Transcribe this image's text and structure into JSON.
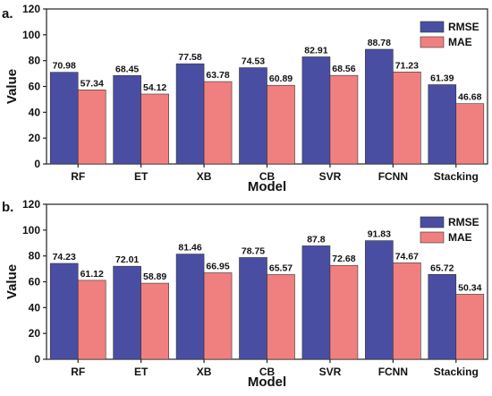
{
  "colors": {
    "rmse": "#4a4ea3",
    "mae": "#f08080",
    "axis": "#222222"
  },
  "chart_data": [
    {
      "type": "bar",
      "panel_label": "a.",
      "xlabel": "Model",
      "ylabel": "Value",
      "ylim": [
        0,
        120
      ],
      "yticks": [
        "0",
        "20",
        "40",
        "60",
        "80",
        "100",
        "120"
      ],
      "legend_position": "top-right",
      "categories": [
        "RF",
        "ET",
        "XB",
        "CB",
        "SVR",
        "FCNN",
        "Stacking"
      ],
      "series": [
        {
          "name": "RMSE",
          "values": [
            70.98,
            68.45,
            77.58,
            74.53,
            82.91,
            88.78,
            61.39
          ],
          "labels": [
            "70.98",
            "68.45",
            "77.58",
            "74.53",
            "82.91",
            "88.78",
            "61.39"
          ]
        },
        {
          "name": "MAE",
          "values": [
            57.34,
            54.12,
            63.78,
            60.89,
            68.56,
            71.23,
            46.68
          ],
          "labels": [
            "57.34",
            "54.12",
            "63.78",
            "60.89",
            "68.56",
            "71.23",
            "46.68"
          ]
        }
      ]
    },
    {
      "type": "bar",
      "panel_label": "b.",
      "xlabel": "Model",
      "ylabel": "Value",
      "ylim": [
        0,
        120
      ],
      "yticks": [
        "0",
        "20",
        "40",
        "60",
        "80",
        "100",
        "120"
      ],
      "legend_position": "top-right",
      "categories": [
        "RF",
        "ET",
        "XB",
        "CB",
        "SVR",
        "FCNN",
        "Stacking"
      ],
      "series": [
        {
          "name": "RMSE",
          "values": [
            74.23,
            72.01,
            81.46,
            78.75,
            87.8,
            91.83,
            65.72
          ],
          "labels": [
            "74.23",
            "72.01",
            "81.46",
            "78.75",
            "87.8",
            "91.83",
            "65.72"
          ]
        },
        {
          "name": "MAE",
          "values": [
            61.12,
            58.89,
            66.95,
            65.57,
            72.68,
            74.67,
            50.34
          ],
          "labels": [
            "61.12",
            "58.89",
            "66.95",
            "65.57",
            "72.68",
            "74.67",
            "50.34"
          ]
        }
      ]
    }
  ]
}
